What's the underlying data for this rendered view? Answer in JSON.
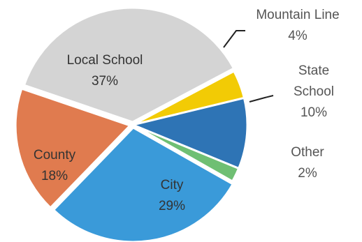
{
  "chart_data": {
    "type": "pie",
    "start_angle_deg": -28,
    "direction": "clockwise",
    "slices": [
      {
        "label": "Mountain Line",
        "value": 4,
        "value_label": "4%",
        "color": "#f2cb05",
        "exploded": false
      },
      {
        "label": "State School",
        "value": 10,
        "value_label": "10%",
        "color": "#2e74b5",
        "exploded": false
      },
      {
        "label": "Other",
        "value": 2,
        "value_label": "2%",
        "color": "#6fbf73",
        "exploded": false
      },
      {
        "label": "City",
        "value": 29,
        "value_label": "29%",
        "color": "#3a9ad9",
        "exploded": true
      },
      {
        "label": "County",
        "value": 18,
        "value_label": "18%",
        "color": "#e07b4f",
        "exploded": true
      },
      {
        "label": "Local School",
        "value": 37,
        "value_label": "37%",
        "color": "#d4d4d4",
        "exploded": true
      }
    ],
    "label_texts": {
      "mountain_line": [
        "Mountain Line",
        "4%"
      ],
      "state_school": [
        "State",
        "School",
        "10%"
      ],
      "other": [
        "Other",
        "2%"
      ],
      "city": [
        "City",
        "29%"
      ],
      "county": [
        "County",
        "18%"
      ],
      "local_school": [
        "Local School",
        "37%"
      ]
    },
    "legend": "none"
  }
}
